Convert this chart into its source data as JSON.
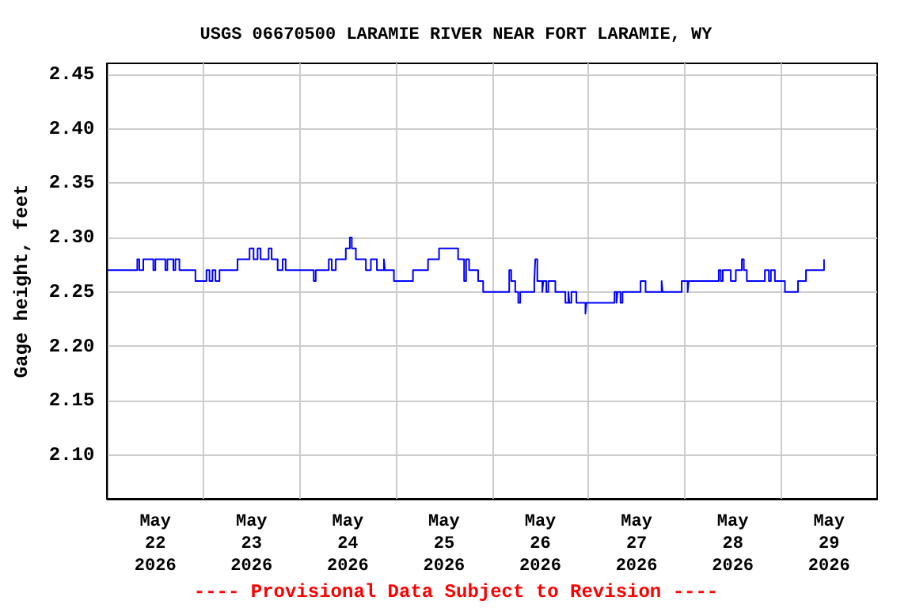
{
  "chart_data": {
    "type": "step",
    "title": "USGS 06670500 LARAMIE RIVER NEAR FORT LARAMIE, WY",
    "ylabel": "Gage height, feet",
    "annotations": [
      "---- Provisional Data Subject to Revision ----"
    ],
    "x": [
      "2026-05-22T00:00",
      "2026-05-22T07:30",
      "2026-05-22T08:00",
      "2026-05-22T09:00",
      "2026-05-22T11:30",
      "2026-05-22T12:00",
      "2026-05-22T14:30",
      "2026-05-22T15:00",
      "2026-05-22T16:30",
      "2026-05-22T17:00",
      "2026-05-22T18:00",
      "2026-05-22T22:00",
      "2026-05-23T00:45",
      "2026-05-23T01:30",
      "2026-05-23T02:15",
      "2026-05-23T03:00",
      "2026-05-23T04:00",
      "2026-05-23T08:30",
      "2026-05-23T11:30",
      "2026-05-23T12:30",
      "2026-05-23T13:30",
      "2026-05-23T14:15",
      "2026-05-23T16:15",
      "2026-05-23T17:00",
      "2026-05-23T18:30",
      "2026-05-23T19:45",
      "2026-05-23T20:30",
      "2026-05-24T03:30",
      "2026-05-24T04:00",
      "2026-05-24T07:15",
      "2026-05-24T08:00",
      "2026-05-24T09:00",
      "2026-05-24T11:30",
      "2026-05-24T12:30",
      "2026-05-24T13:00",
      "2026-05-24T14:00",
      "2026-05-24T16:30",
      "2026-05-24T17:45",
      "2026-05-24T19:15",
      "2026-05-24T21:00",
      "2026-05-24T21:15",
      "2026-05-24T23:30",
      "2026-05-25T04:15",
      "2026-05-25T08:00",
      "2026-05-25T10:45",
      "2026-05-25T15:30",
      "2026-05-25T17:00",
      "2026-05-25T17:30",
      "2026-05-25T18:15",
      "2026-05-25T20:30",
      "2026-05-25T21:45",
      "2026-05-26T04:15",
      "2026-05-26T04:45",
      "2026-05-26T05:45",
      "2026-05-26T06:30",
      "2026-05-26T07:00",
      "2026-05-26T10:30",
      "2026-05-26T10:45",
      "2026-05-26T11:15",
      "2026-05-26T12:30",
      "2026-05-26T12:45",
      "2026-05-26T13:30",
      "2026-05-26T14:00",
      "2026-05-26T15:45",
      "2026-05-26T18:15",
      "2026-05-26T19:00",
      "2026-05-26T19:15",
      "2026-05-26T19:45",
      "2026-05-26T21:00",
      "2026-05-26T23:15",
      "2026-05-26T23:30",
      "2026-05-27T06:30",
      "2026-05-27T07:00",
      "2026-05-27T07:15",
      "2026-05-27T08:00",
      "2026-05-27T08:30",
      "2026-05-27T13:00",
      "2026-05-27T14:15",
      "2026-05-27T18:15",
      "2026-05-27T18:30",
      "2026-05-27T23:15",
      "2026-05-28T00:45",
      "2026-05-28T01:00",
      "2026-05-28T08:30",
      "2026-05-28T09:00",
      "2026-05-28T09:30",
      "2026-05-28T11:30",
      "2026-05-28T12:45",
      "2026-05-28T14:15",
      "2026-05-28T14:45",
      "2026-05-28T15:30",
      "2026-05-28T20:00",
      "2026-05-28T21:00",
      "2026-05-28T21:30",
      "2026-05-28T22:30",
      "2026-05-29T01:00",
      "2026-05-29T04:15",
      "2026-05-29T06:15",
      "2026-05-29T10:45"
    ],
    "series": [
      {
        "color": "#0000ff",
        "values": [
          2.27,
          2.28,
          2.27,
          2.28,
          2.27,
          2.28,
          2.27,
          2.28,
          2.27,
          2.28,
          2.27,
          2.26,
          2.27,
          2.26,
          2.27,
          2.26,
          2.27,
          2.28,
          2.29,
          2.28,
          2.29,
          2.28,
          2.29,
          2.28,
          2.27,
          2.28,
          2.27,
          2.26,
          2.27,
          2.28,
          2.27,
          2.28,
          2.29,
          2.3,
          2.29,
          2.28,
          2.27,
          2.28,
          2.27,
          2.28,
          2.27,
          2.26,
          2.27,
          2.28,
          2.29,
          2.28,
          2.26,
          2.28,
          2.27,
          2.26,
          2.25,
          2.27,
          2.26,
          2.25,
          2.24,
          2.25,
          2.26,
          2.28,
          2.26,
          2.25,
          2.26,
          2.25,
          2.26,
          2.25,
          2.24,
          2.25,
          2.24,
          2.25,
          2.24,
          2.23,
          2.24,
          2.25,
          2.24,
          2.25,
          2.24,
          2.25,
          2.26,
          2.25,
          2.26,
          2.25,
          2.26,
          2.25,
          2.26,
          2.27,
          2.26,
          2.27,
          2.26,
          2.27,
          2.28,
          2.27,
          2.26,
          2.27,
          2.26,
          2.27,
          2.26,
          2.25,
          2.26,
          2.27,
          2.28
        ]
      }
    ],
    "xlim": [
      "2026-05-22",
      "2026-05-30"
    ],
    "xticks": [
      {
        "value": "2026-05-22T12:00",
        "label": "May\n22\n2026"
      },
      {
        "value": "2026-05-23T12:00",
        "label": "May\n23\n2026"
      },
      {
        "value": "2026-05-24T12:00",
        "label": "May\n24\n2026"
      },
      {
        "value": "2026-05-25T12:00",
        "label": "May\n25\n2026"
      },
      {
        "value": "2026-05-26T12:00",
        "label": "May\n26\n2026"
      },
      {
        "value": "2026-05-27T12:00",
        "label": "May\n27\n2026"
      },
      {
        "value": "2026-05-28T12:00",
        "label": "May\n28\n2026"
      },
      {
        "value": "2026-05-29T12:00",
        "label": "May\n29\n2026"
      },
      {
        "value": "2026-05-23",
        "label": null
      },
      {
        "value": "2026-05-24",
        "label": null
      },
      {
        "value": "2026-05-25",
        "label": null
      },
      {
        "value": "2026-05-26",
        "label": null
      },
      {
        "value": "2026-05-27",
        "label": null
      },
      {
        "value": "2026-05-28",
        "label": null
      },
      {
        "value": "2026-05-29",
        "label": null
      }
    ],
    "ylim": [
      2.06,
      2.46
    ],
    "yticks": [
      {
        "value": 2.1,
        "label": "2.10"
      },
      {
        "value": 2.15,
        "label": "2.15"
      },
      {
        "value": 2.2,
        "label": "2.20"
      },
      {
        "value": 2.25,
        "label": "2.25"
      },
      {
        "value": 2.3,
        "label": "2.30"
      },
      {
        "value": 2.35,
        "label": "2.35"
      },
      {
        "value": 2.4,
        "label": "2.40"
      },
      {
        "value": 2.45,
        "label": "2.45"
      }
    ],
    "grid": true,
    "marker": "none",
    "line_style": "solid"
  }
}
